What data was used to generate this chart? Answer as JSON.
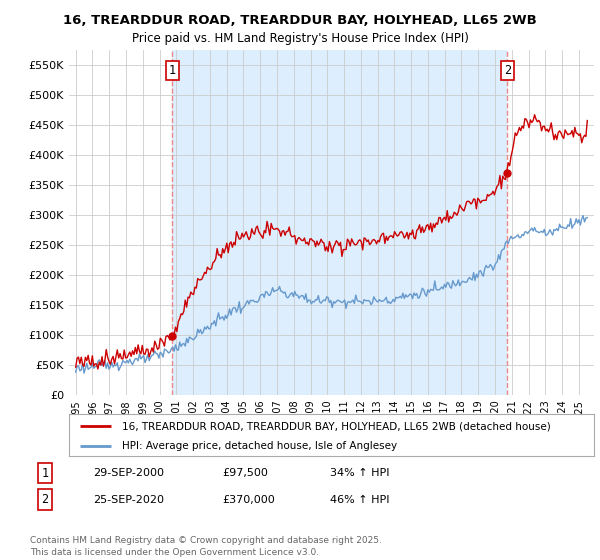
{
  "title": "16, TREARDDUR ROAD, TREARDDUR BAY, HOLYHEAD, LL65 2WB",
  "subtitle": "Price paid vs. HM Land Registry's House Price Index (HPI)",
  "background_color": "#ffffff",
  "plot_background": "#ffffff",
  "plot_shade_color": "#ddeeff",
  "grid_color": "#cccccc",
  "legend_label_red": "16, TREARDDUR ROAD, TREARDDUR BAY, HOLYHEAD, LL65 2WB (detached house)",
  "legend_label_blue": "HPI: Average price, detached house, Isle of Anglesey",
  "annotation1_date": "29-SEP-2000",
  "annotation1_price": "£97,500",
  "annotation1_hpi": "34% ↑ HPI",
  "annotation2_date": "25-SEP-2020",
  "annotation2_price": "£370,000",
  "annotation2_hpi": "46% ↑ HPI",
  "footnote": "Contains HM Land Registry data © Crown copyright and database right 2025.\nThis data is licensed under the Open Government Licence v3.0.",
  "ylim": [
    0,
    575000
  ],
  "yticks": [
    0,
    50000,
    100000,
    150000,
    200000,
    250000,
    300000,
    350000,
    400000,
    450000,
    500000,
    550000
  ],
  "ytick_labels": [
    "£0",
    "£50K",
    "£100K",
    "£150K",
    "£200K",
    "£250K",
    "£300K",
    "£350K",
    "£400K",
    "£450K",
    "£500K",
    "£550K"
  ],
  "red_color": "#cc0000",
  "blue_color": "#6699cc",
  "vline_color": "#ee8888",
  "marker_red1_x": 2000.75,
  "marker_red1_y": 97500,
  "marker_red2_x": 2020.73,
  "marker_red2_y": 370000,
  "xlim_left": 1994.6,
  "xlim_right": 2025.9
}
